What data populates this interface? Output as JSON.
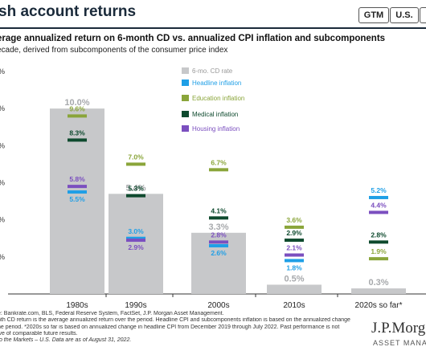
{
  "header": {
    "title": "sh account returns",
    "tags": [
      "GTM",
      "U.S.",
      "4"
    ]
  },
  "chart": {
    "title": "erage annualized return on 6-month CD vs. annualized CPI inflation and subcomponents",
    "subtitle": "ecade, derived from subcomponents of the consumer price index",
    "ytick_labels": [
      "%",
      "%",
      "%",
      "%",
      "%",
      "%"
    ]
  },
  "colors": {
    "cd": "#c7c8ca",
    "headline": "#1f9fe6",
    "education": "#8aa53a",
    "medical": "#0e4a2e",
    "housing": "#7b4fbf",
    "cd_label": "#a7a9ac"
  },
  "chart_data": {
    "type": "bar",
    "categories": [
      "1980s",
      "1990s",
      "2000s",
      "2010s",
      "2020s so far*"
    ],
    "ylim": [
      0,
      12
    ],
    "grid": false,
    "legend_position": "top-center",
    "series": [
      {
        "name": "6-mo. CD rate",
        "kind": "bar",
        "values": [
          10.0,
          5.4,
          3.3,
          0.5,
          0.3
        ]
      },
      {
        "name": "Headline inflation",
        "kind": "marker",
        "values": [
          5.5,
          3.0,
          2.6,
          1.8,
          5.2
        ]
      },
      {
        "name": "Education inflation",
        "kind": "marker",
        "values": [
          9.6,
          7.0,
          6.7,
          3.6,
          1.9
        ]
      },
      {
        "name": "Medical inflation",
        "kind": "marker",
        "values": [
          8.3,
          5.3,
          4.1,
          2.9,
          2.8
        ]
      },
      {
        "name": "Housing inflation",
        "kind": "marker",
        "values": [
          5.8,
          2.9,
          2.8,
          2.1,
          4.4
        ]
      }
    ]
  },
  "footnotes": {
    "source": "e: Bankrate.com, BLS, Federal Reserve System, FactSet, J.P. Morgan Asset Management.",
    "line1": "nth CD return is the average annualized return over the period. Headline CPI and subcomponents inflation is based on the annualized change",
    "line2": "he period. *2020s so far is based on annualized change in headline CPI from December 2019 through July 2022. Past performance is not",
    "line3": "ive of comparable future results.",
    "gtm": "to the Markets – U.S. Data are as of August 31, 2022."
  },
  "logo": {
    "name": "J.P.Morg",
    "sub": "ASSET MANAGEM"
  }
}
